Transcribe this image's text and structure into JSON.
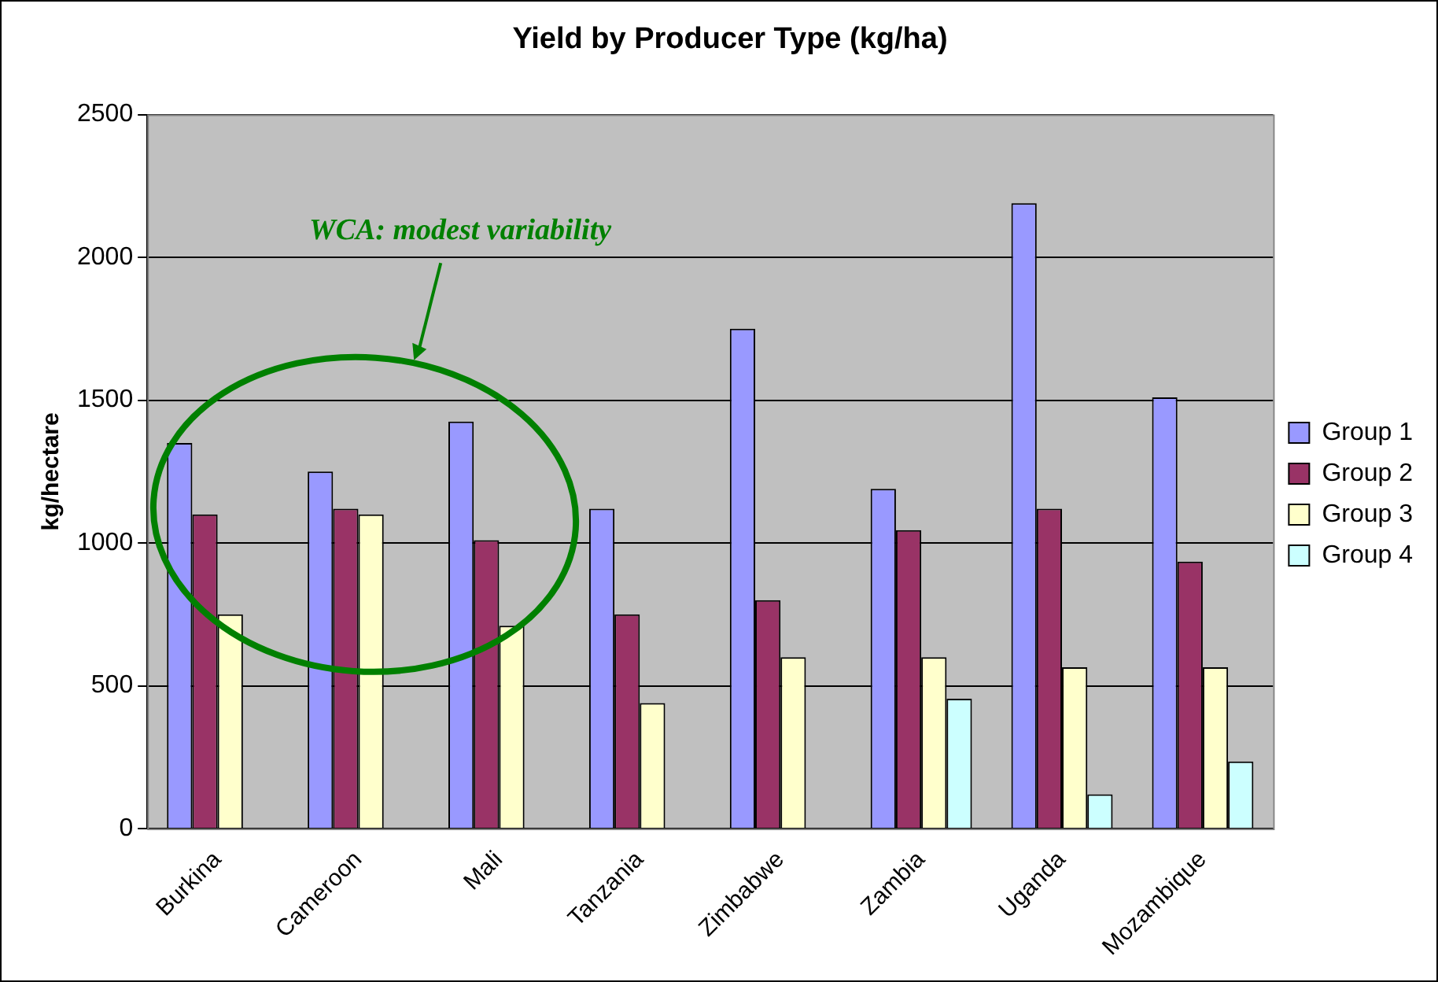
{
  "chart_data": {
    "type": "bar",
    "title": "Yield by Producer Type (kg/ha)",
    "ylabel": "kg/hectare",
    "categories": [
      "Burkina",
      "Cameroon",
      "Mali",
      "Tanzania",
      "Zimbabwe",
      "Zambia",
      "Uganda",
      "Mozambique"
    ],
    "series": [
      {
        "name": "Group 1",
        "color": "#9999ff",
        "values": [
          1350,
          1250,
          1425,
          1120,
          1750,
          1190,
          2190,
          1510
        ]
      },
      {
        "name": "Group 2",
        "color": "#993366",
        "values": [
          1100,
          1120,
          1010,
          750,
          800,
          1045,
          1120,
          935
        ]
      },
      {
        "name": "Group 3",
        "color": "#ffffcc",
        "values": [
          750,
          1100,
          710,
          440,
          600,
          600,
          565,
          565
        ]
      },
      {
        "name": "Group 4",
        "color": "#ccffff",
        "values": [
          null,
          null,
          null,
          null,
          null,
          455,
          120,
          235
        ]
      }
    ],
    "ylim": [
      0,
      2500
    ],
    "yticks": [
      0,
      500,
      1000,
      1500,
      2000,
      2500
    ],
    "grid": "y",
    "legend": "right",
    "annotations": [
      "WCA: modest variability"
    ]
  }
}
